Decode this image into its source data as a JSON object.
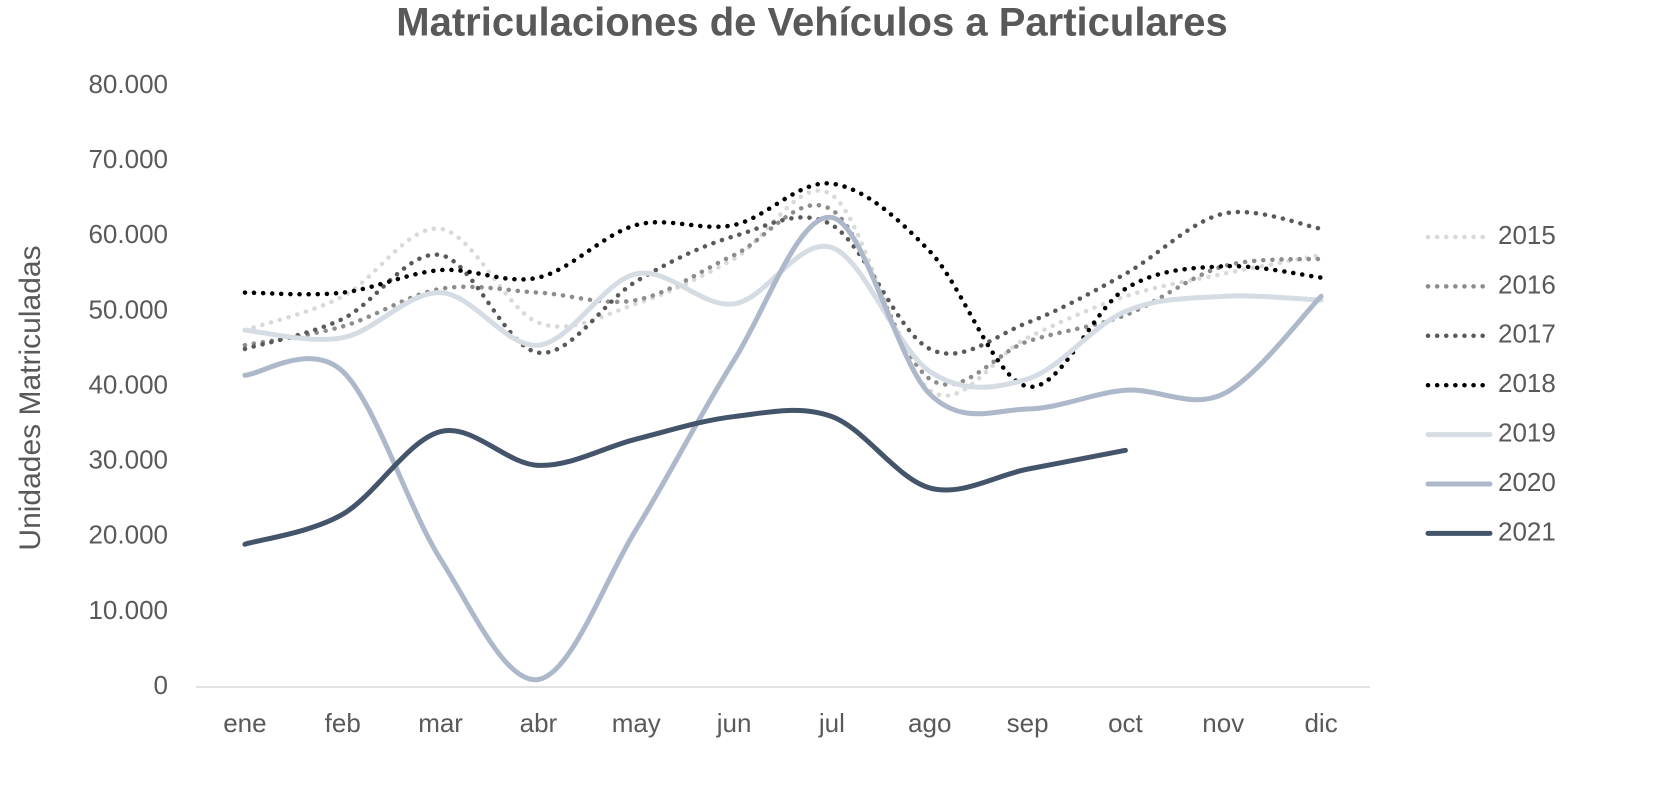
{
  "chart_data": {
    "type": "line",
    "title": "Matriculaciones de Vehículos a Particulares",
    "y_label": "Unidades Matriculadas",
    "categories": [
      "ene",
      "feb",
      "mar",
      "abr",
      "may",
      "jun",
      "jul",
      "ago",
      "sep",
      "oct",
      "nov",
      "dic"
    ],
    "ylim": [
      0,
      80000
    ],
    "yticks": [
      0,
      {
        "value": 10000,
        "label": "10.000"
      },
      {
        "value": 20000,
        "label": "20.000"
      },
      {
        "value": 30000,
        "label": "30.000"
      },
      {
        "value": 40000,
        "label": "40.000"
      },
      {
        "value": 50000,
        "label": "50.000"
      },
      {
        "value": 60000,
        "label": "60.000"
      },
      {
        "value": 70000,
        "label": "70.000"
      },
      {
        "value": 80000,
        "label": "80.000"
      }
    ],
    "grid": false,
    "legend": "right",
    "smooth": true,
    "series": [
      {
        "name": "2015",
        "color": "#d9d9d9",
        "dash": "dotted",
        "values": [
          47500,
          52000,
          61000,
          48500,
          51000,
          57000,
          65500,
          39500,
          46500,
          52000,
          55000,
          57500
        ]
      },
      {
        "name": "2016",
        "color": "#8c8c8c",
        "dash": "dotted",
        "values": [
          45500,
          48000,
          53000,
          52500,
          51500,
          57500,
          63500,
          41000,
          46000,
          49500,
          56000,
          57000
        ]
      },
      {
        "name": "2017",
        "color": "#595959",
        "dash": "dotted",
        "values": [
          45000,
          49000,
          57500,
          44500,
          54000,
          60000,
          61500,
          45000,
          48500,
          55000,
          63000,
          61000
        ]
      },
      {
        "name": "2018",
        "color": "#000000",
        "dash": "dotted",
        "values": [
          52500,
          52500,
          55500,
          54500,
          61500,
          61500,
          67000,
          58000,
          40000,
          53000,
          56000,
          54500
        ]
      },
      {
        "name": "2019",
        "color": "#d6dce4",
        "dash": "solid",
        "values": [
          47500,
          46500,
          52500,
          45500,
          55000,
          51000,
          58500,
          42000,
          41000,
          50000,
          52000,
          51500
        ]
      },
      {
        "name": "2020",
        "color": "#adb9ca",
        "dash": "solid",
        "values": [
          41500,
          42000,
          17000,
          1000,
          21000,
          43500,
          62500,
          39000,
          37000,
          39500,
          39000,
          52000
        ]
      },
      {
        "name": "2021",
        "color": "#44546a",
        "dash": "solid",
        "values": [
          19000,
          23000,
          34000,
          29500,
          33000,
          36000,
          36000,
          26500,
          29000,
          31500,
          null,
          null
        ]
      }
    ]
  }
}
